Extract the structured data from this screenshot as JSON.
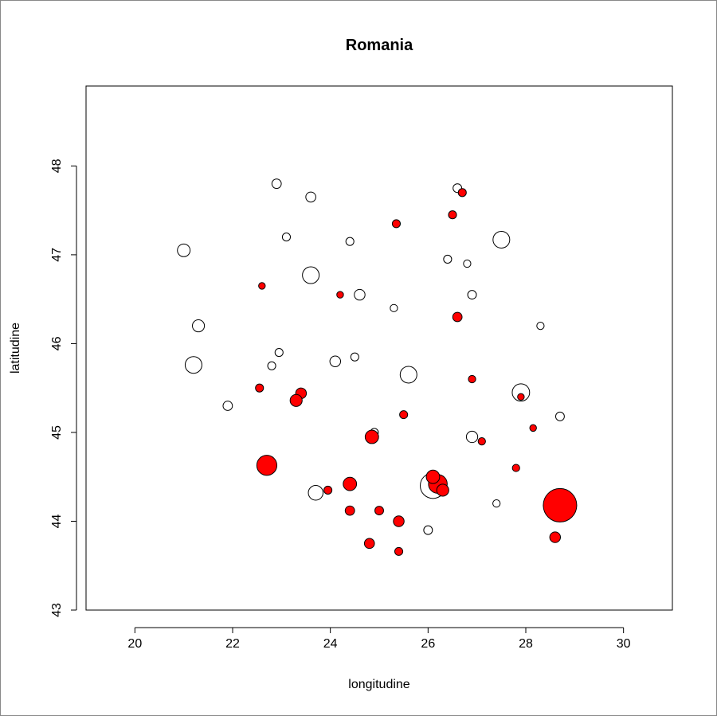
{
  "chart_data": {
    "type": "scatter",
    "title": "Romania",
    "xlabel": "longitudine",
    "ylabel": "latitudine",
    "xlim": [
      19,
      31
    ],
    "ylim": [
      43,
      48.9
    ],
    "x_ticks": [
      20,
      22,
      24,
      26,
      28,
      30
    ],
    "y_ticks": [
      43,
      44,
      45,
      46,
      47,
      48
    ],
    "x_tick_labels": [
      "20",
      "22",
      "24",
      "26",
      "28",
      "30"
    ],
    "y_tick_labels": [
      "43",
      "44",
      "45",
      "46",
      "47",
      "48"
    ],
    "grid": false,
    "legend": "none",
    "colors": {
      "filled": "#ff0000",
      "outline": "#000000",
      "open": "#ffffff"
    },
    "series": [
      {
        "fill": "#ff0000",
        "points": [
          [
            28.7,
            44.18,
            5.0
          ],
          [
            22.7,
            44.63,
            3.0
          ],
          [
            26.2,
            44.42,
            2.8
          ],
          [
            26.1,
            44.5,
            2.0
          ],
          [
            26.3,
            44.35,
            1.8
          ],
          [
            24.4,
            44.42,
            2.0
          ],
          [
            23.4,
            45.44,
            1.6
          ],
          [
            23.3,
            45.36,
            1.8
          ],
          [
            25.4,
            44.0,
            1.6
          ],
          [
            24.85,
            44.95,
            2.0
          ],
          [
            28.6,
            43.82,
            1.6
          ],
          [
            24.8,
            43.75,
            1.5
          ],
          [
            25.4,
            43.66,
            1.2
          ],
          [
            24.4,
            44.12,
            1.4
          ],
          [
            25.0,
            44.12,
            1.3
          ],
          [
            25.35,
            47.35,
            1.2
          ],
          [
            22.55,
            45.5,
            1.2
          ],
          [
            23.95,
            44.35,
            1.2
          ],
          [
            25.5,
            45.2,
            1.2
          ],
          [
            26.6,
            46.3,
            1.4
          ],
          [
            26.9,
            45.6,
            1.1
          ],
          [
            27.1,
            44.9,
            1.1
          ],
          [
            27.8,
            44.6,
            1.1
          ],
          [
            26.7,
            47.7,
            1.2
          ],
          [
            26.5,
            47.45,
            1.2
          ],
          [
            24.2,
            46.55,
            1.0
          ],
          [
            22.6,
            46.65,
            1.0
          ],
          [
            28.15,
            45.05,
            1.0
          ],
          [
            27.9,
            45.4,
            1.0
          ]
        ]
      },
      {
        "fill": "#ffffff",
        "points": [
          [
            26.1,
            44.4,
            3.8
          ],
          [
            27.9,
            45.45,
            2.6
          ],
          [
            27.5,
            47.17,
            2.5
          ],
          [
            21.2,
            45.76,
            2.5
          ],
          [
            23.6,
            46.77,
            2.5
          ],
          [
            25.6,
            45.65,
            2.5
          ],
          [
            21.0,
            47.05,
            1.9
          ],
          [
            21.3,
            46.2,
            1.8
          ],
          [
            26.9,
            44.95,
            1.7
          ],
          [
            23.7,
            44.32,
            2.2
          ],
          [
            24.1,
            45.8,
            1.6
          ],
          [
            24.6,
            46.55,
            1.6
          ],
          [
            22.9,
            47.8,
            1.4
          ],
          [
            23.6,
            47.65,
            1.5
          ],
          [
            21.9,
            45.3,
            1.4
          ],
          [
            26.0,
            43.9,
            1.3
          ],
          [
            28.7,
            45.18,
            1.3
          ],
          [
            26.9,
            46.55,
            1.3
          ],
          [
            26.6,
            47.75,
            1.3
          ],
          [
            24.4,
            47.15,
            1.2
          ],
          [
            22.95,
            45.9,
            1.2
          ],
          [
            22.8,
            45.75,
            1.2
          ],
          [
            23.1,
            47.2,
            1.2
          ],
          [
            24.5,
            45.85,
            1.2
          ],
          [
            24.9,
            45.0,
            1.2
          ],
          [
            26.4,
            46.95,
            1.2
          ],
          [
            25.3,
            46.4,
            1.1
          ],
          [
            28.3,
            46.2,
            1.1
          ],
          [
            27.4,
            44.2,
            1.1
          ],
          [
            26.8,
            46.9,
            1.1
          ]
        ]
      }
    ]
  }
}
